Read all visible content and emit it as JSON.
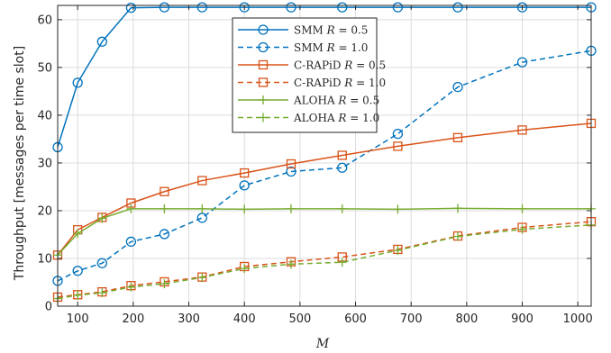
{
  "chart_data": {
    "type": "line",
    "title": "",
    "xlabel": "M",
    "ylabel": "Throughput [messages per time slot]",
    "xlim": [
      64,
      1024
    ],
    "ylim": [
      0,
      63
    ],
    "xticks": [
      100,
      200,
      300,
      400,
      500,
      600,
      700,
      800,
      900,
      1000
    ],
    "yticks": [
      0,
      10,
      20,
      30,
      40,
      50,
      60
    ],
    "grid": true,
    "legend_position": "top-center",
    "x": [
      64,
      100,
      144,
      196,
      256,
      324,
      400,
      484,
      576,
      676,
      784,
      900,
      1024
    ],
    "series": [
      {
        "name": "SMM R = 0.5",
        "color": "#0072BD",
        "dash": "solid",
        "marker": "circle",
        "values": [
          33.3,
          46.8,
          55.4,
          62.5,
          62.6,
          62.6,
          62.6,
          62.6,
          62.6,
          62.6,
          62.6,
          62.6,
          62.6
        ]
      },
      {
        "name": "SMM R = 1.0",
        "color": "#0072BD",
        "dash": "dashed",
        "marker": "circle",
        "values": [
          5.3,
          7.4,
          9.0,
          13.5,
          15.1,
          18.5,
          25.3,
          28.2,
          29.0,
          36.1,
          45.9,
          51.1,
          53.5
        ]
      },
      {
        "name": "C-RAPiD R = 0.5",
        "color": "#D95319",
        "dash": "solid",
        "marker": "square",
        "values": [
          10.7,
          16.0,
          18.6,
          21.6,
          24.0,
          26.3,
          27.9,
          29.8,
          31.6,
          33.5,
          35.3,
          36.9,
          38.3
        ]
      },
      {
        "name": "C-RAPiD R = 1.0",
        "color": "#D95319",
        "dash": "dashed",
        "marker": "square",
        "values": [
          1.9,
          2.4,
          3.0,
          4.3,
          5.1,
          6.1,
          8.3,
          9.3,
          10.3,
          11.9,
          14.7,
          16.5,
          17.7
        ]
      },
      {
        "name": "ALOHA R = 0.5",
        "color": "#77AC30",
        "dash": "solid",
        "marker": "plus",
        "values": [
          10.7,
          15.2,
          18.4,
          20.4,
          20.4,
          20.4,
          20.3,
          20.4,
          20.4,
          20.3,
          20.5,
          20.4,
          20.4
        ]
      },
      {
        "name": "ALOHA R = 1.0",
        "color": "#77AC30",
        "dash": "dashed",
        "marker": "plus",
        "values": [
          1.6,
          2.3,
          2.8,
          4.0,
          4.7,
          6.0,
          7.9,
          8.8,
          9.2,
          11.7,
          14.6,
          16.1,
          17.0
        ]
      }
    ]
  }
}
